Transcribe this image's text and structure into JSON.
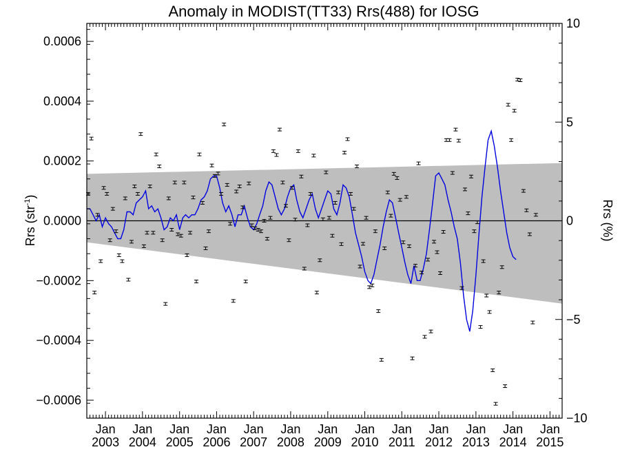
{
  "chart_data": {
    "type": "scatter",
    "title": "Anomaly in MODIST(TT33) Rrs(488) for IOSG",
    "ylabel": "Rrs (str",
    "ylabel_sup": "-1",
    "ylabel_close": ")",
    "y2label": "Rrs (%)",
    "ylim": [
      -0.00066,
      0.00066
    ],
    "y2lim": [
      -10,
      10
    ],
    "xlim": [
      "2002-07-01",
      "2015-05-01"
    ],
    "yticks": [
      {
        "value": 0.0006,
        "label": "0.0006"
      },
      {
        "value": 0.0004,
        "label": "0.0004"
      },
      {
        "value": 0.0002,
        "label": "0.0002"
      },
      {
        "value": 0.0,
        "label": "0.0000"
      },
      {
        "value": -0.0002,
        "label": "−0.0002"
      },
      {
        "value": -0.0004,
        "label": "−0.0004"
      },
      {
        "value": -0.0006,
        "label": "−0.0006"
      }
    ],
    "y2ticks": [
      {
        "value": 10,
        "label": "10"
      },
      {
        "value": 5,
        "label": "5"
      },
      {
        "value": 0,
        "label": "0"
      },
      {
        "value": -5,
        "label": "−5"
      },
      {
        "value": -10,
        "label": "−10"
      }
    ],
    "xticks": [
      {
        "date": "2003-01-01",
        "month": "Jan",
        "year": "2003"
      },
      {
        "date": "2004-01-01",
        "month": "Jan",
        "year": "2004"
      },
      {
        "date": "2005-01-01",
        "month": "Jan",
        "year": "2005"
      },
      {
        "date": "2006-01-01",
        "month": "Jan",
        "year": "2006"
      },
      {
        "date": "2007-01-01",
        "month": "Jan",
        "year": "2007"
      },
      {
        "date": "2008-01-01",
        "month": "Jan",
        "year": "2008"
      },
      {
        "date": "2009-01-01",
        "month": "Jan",
        "year": "2009"
      },
      {
        "date": "2010-01-01",
        "month": "Jan",
        "year": "2010"
      },
      {
        "date": "2011-01-01",
        "month": "Jan",
        "year": "2011"
      },
      {
        "date": "2012-01-01",
        "month": "Jan",
        "year": "2012"
      },
      {
        "date": "2013-01-01",
        "month": "Jan",
        "year": "2013"
      },
      {
        "date": "2014-01-01",
        "month": "Jan",
        "year": "2014"
      },
      {
        "date": "2015-01-01",
        "month": "Jan",
        "year": "2015"
      }
    ],
    "zero_line": 0.0,
    "band": {
      "upper": [
        [
          "2002-07-01",
          0.000157
        ],
        [
          "2015-05-01",
          0.000193
        ]
      ],
      "lower": [
        [
          "2002-07-01",
          -7.2e-05
        ],
        [
          "2015-05-01",
          -0.000277
        ]
      ],
      "color": "#bebebe"
    },
    "points": [
      [
        "2002-07-15",
        9e-05
      ],
      [
        "2002-08-15",
        0.000275
      ],
      [
        "2002-09-15",
        -0.00024
      ],
      [
        "2002-10-15",
        2e-05
      ],
      [
        "2002-11-15",
        -0.000135
      ],
      [
        "2002-12-15",
        0.00011
      ],
      [
        "2003-01-15",
        9e-05
      ],
      [
        "2003-02-15",
        -6.5e-05
      ],
      [
        "2003-03-15",
        4e-05
      ],
      [
        "2003-04-15",
        -3.5e-05
      ],
      [
        "2003-05-15",
        -0.000115
      ],
      [
        "2003-06-15",
        -0.000135
      ],
      [
        "2003-07-15",
        7.5e-05
      ],
      [
        "2003-08-15",
        -0.000197
      ],
      [
        "2003-09-15",
        -7e-05
      ],
      [
        "2003-10-15",
        0.000115
      ],
      [
        "2003-11-15",
        9e-05
      ],
      [
        "2003-12-15",
        0.00029
      ],
      [
        "2004-01-15",
        -8.5e-05
      ],
      [
        "2004-02-15",
        -4e-05
      ],
      [
        "2004-03-15",
        0.000115
      ],
      [
        "2004-04-15",
        -4e-05
      ],
      [
        "2004-05-15",
        0.000222
      ],
      [
        "2004-06-15",
        0.000182
      ],
      [
        "2004-07-15",
        -6.5e-05
      ],
      [
        "2004-08-15",
        -0.000278
      ],
      [
        "2004-09-15",
        7.5e-05
      ],
      [
        "2004-10-15",
        -3e-05
      ],
      [
        "2004-11-15",
        0.000128
      ],
      [
        "2004-12-15",
        -4.5e-05
      ],
      [
        "2005-01-15",
        -5e-05
      ],
      [
        "2005-02-15",
        0.000128
      ],
      [
        "2005-03-15",
        -0.000115
      ],
      [
        "2005-04-15",
        -4e-05
      ],
      [
        "2005-05-15",
        7.8e-05
      ],
      [
        "2005-06-15",
        -0.000203
      ],
      [
        "2005-07-15",
        0.000222
      ],
      [
        "2005-08-15",
        6e-05
      ],
      [
        "2005-09-15",
        -9.2e-05
      ],
      [
        "2005-10-15",
        -3.5e-05
      ],
      [
        "2005-11-15",
        0.000185
      ],
      [
        "2005-12-15",
        0.00015
      ],
      [
        "2006-01-15",
        0.000158
      ],
      [
        "2006-02-15",
        9e-05
      ],
      [
        "2006-03-15",
        0.000322
      ],
      [
        "2006-04-15",
        0.00012
      ],
      [
        "2006-05-15",
        -1e-05
      ],
      [
        "2006-06-15",
        -0.000268
      ],
      [
        "2006-07-15",
        9.8e-05
      ],
      [
        "2006-08-15",
        0.000115
      ],
      [
        "2006-09-15",
        4.5e-05
      ],
      [
        "2006-10-15",
        -0.000203
      ],
      [
        "2006-11-15",
        0.000125
      ],
      [
        "2006-12-15",
        -1.5e-05
      ],
      [
        "2007-01-15",
        -2.5e-05
      ],
      [
        "2007-02-15",
        -3e-05
      ],
      [
        "2007-03-15",
        -3.5e-05
      ],
      [
        "2007-04-15",
        0.0
      ],
      [
        "2007-05-15",
        -6e-05
      ],
      [
        "2007-06-15",
        1e-05
      ],
      [
        "2007-07-15",
        0.000233
      ],
      [
        "2007-08-15",
        0.00022
      ],
      [
        "2007-09-15",
        0.000305
      ],
      [
        "2007-10-15",
        0.000128
      ],
      [
        "2007-11-15",
        5e-05
      ],
      [
        "2007-12-15",
        -6.5e-05
      ],
      [
        "2008-01-15",
        0.00011
      ],
      [
        "2008-02-15",
        4e-06
      ],
      [
        "2008-03-15",
        0.000233
      ],
      [
        "2008-04-15",
        0.000148
      ],
      [
        "2008-05-15",
        -0.00016
      ],
      [
        "2008-06-15",
        -1.5e-05
      ],
      [
        "2008-07-15",
        9e-05
      ],
      [
        "2008-08-15",
        0.000218
      ],
      [
        "2008-09-15",
        -0.00024
      ],
      [
        "2008-10-15",
        -0.000132
      ],
      [
        "2008-11-15",
        5e-06
      ],
      [
        "2008-12-15",
        0.000162
      ],
      [
        "2009-01-15",
        1e-05
      ],
      [
        "2009-02-15",
        -5e-05
      ],
      [
        "2009-03-15",
        6e-05
      ],
      [
        "2009-04-15",
        9.5e-05
      ],
      [
        "2009-05-15",
        -7.8e-05
      ],
      [
        "2009-06-15",
        0.000228
      ],
      [
        "2009-07-15",
        0.000273
      ],
      [
        "2009-08-15",
        9e-05
      ],
      [
        "2009-09-15",
        4e-05
      ],
      [
        "2009-10-15",
        0.000182
      ],
      [
        "2009-11-15",
        -0.000153
      ],
      [
        "2009-12-15",
        -7.7e-05
      ],
      [
        "2010-01-15",
        1e-05
      ],
      [
        "2010-02-15",
        -0.000222
      ],
      [
        "2010-03-15",
        -0.000216
      ],
      [
        "2010-04-15",
        -3.5e-05
      ],
      [
        "2010-05-15",
        -0.000302
      ],
      [
        "2010-06-15",
        -0.000465
      ],
      [
        "2010-07-15",
        -9.2e-05
      ],
      [
        "2010-08-15",
        9.5e-05
      ],
      [
        "2010-09-15",
        1.7e-05
      ],
      [
        "2010-10-15",
        0.000157
      ],
      [
        "2010-11-15",
        0.000143
      ],
      [
        "2010-12-15",
        7e-05
      ],
      [
        "2011-01-15",
        -7.2e-05
      ],
      [
        "2011-02-15",
        8e-05
      ],
      [
        "2011-03-15",
        -8.5e-05
      ],
      [
        "2011-04-15",
        -0.00046
      ],
      [
        "2011-05-15",
        -0.00015
      ],
      [
        "2011-06-15",
        0.000192
      ],
      [
        "2011-07-15",
        -0.000173
      ],
      [
        "2011-08-15",
        -0.000388
      ],
      [
        "2011-09-15",
        -0.00013
      ],
      [
        "2011-10-15",
        -0.00037
      ],
      [
        "2011-11-15",
        -7e-05
      ],
      [
        "2011-12-15",
        -0.000105
      ],
      [
        "2012-01-15",
        -0.000175
      ],
      [
        "2012-02-15",
        -3.7e-05
      ],
      [
        "2012-03-15",
        0.00027
      ],
      [
        "2012-04-15",
        0.00027
      ],
      [
        "2012-05-15",
        0.00016
      ],
      [
        "2012-06-15",
        0.000305
      ],
      [
        "2012-07-15",
        0.000268
      ],
      [
        "2012-08-15",
        -0.000225
      ],
      [
        "2012-09-15",
        0.000105
      ],
      [
        "2012-10-15",
        2.5e-05
      ],
      [
        "2012-11-15",
        0.000148
      ],
      [
        "2012-12-15",
        -3.5e-05
      ],
      [
        "2013-01-15",
        -5e-06
      ],
      [
        "2013-02-15",
        -0.000355
      ],
      [
        "2013-03-15",
        -0.000135
      ],
      [
        "2013-04-15",
        -0.00025
      ],
      [
        "2013-05-15",
        -0.000305
      ],
      [
        "2013-06-15",
        -0.0005
      ],
      [
        "2013-07-15",
        -0.000612
      ],
      [
        "2013-08-15",
        -0.00024
      ],
      [
        "2013-09-15",
        -0.000155
      ],
      [
        "2013-10-15",
        -0.000553
      ],
      [
        "2013-11-15",
        0.000388
      ],
      [
        "2013-12-15",
        0.00027
      ],
      [
        "2014-01-15",
        0.000368
      ],
      [
        "2014-02-15",
        0.000472
      ],
      [
        "2014-03-15",
        0.00047
      ],
      [
        "2014-04-15",
        0.0001
      ],
      [
        "2014-05-15",
        3.5e-05
      ],
      [
        "2014-06-15",
        -4.5e-05
      ],
      [
        "2014-07-15",
        -0.00034
      ],
      [
        "2014-08-15",
        2e-05
      ]
    ],
    "smoothed_line": {
      "color": "#0000e0",
      "values": [
        [
          "2002-07-01",
          4e-05
        ],
        [
          "2002-08-01",
          4e-05
        ],
        [
          "2002-09-01",
          2e-05
        ],
        [
          "2002-10-01",
          0.0
        ],
        [
          "2002-11-01",
          2e-05
        ],
        [
          "2002-12-01",
          -2e-05
        ],
        [
          "2003-01-01",
          1e-05
        ],
        [
          "2003-02-01",
          -1e-05
        ],
        [
          "2003-03-01",
          -2e-05
        ],
        [
          "2003-04-01",
          -4e-05
        ],
        [
          "2003-05-01",
          -6e-05
        ],
        [
          "2003-06-01",
          -6e-05
        ],
        [
          "2003-07-01",
          -3e-05
        ],
        [
          "2003-08-01",
          3e-05
        ],
        [
          "2003-09-01",
          3e-05
        ],
        [
          "2003-10-01",
          2e-05
        ],
        [
          "2003-11-01",
          6e-05
        ],
        [
          "2003-12-01",
          7e-05
        ],
        [
          "2004-01-01",
          8e-05
        ],
        [
          "2004-02-01",
          0.0001
        ],
        [
          "2004-03-01",
          4e-05
        ],
        [
          "2004-04-01",
          5e-05
        ],
        [
          "2004-05-01",
          3e-05
        ],
        [
          "2004-06-01",
          4e-05
        ],
        [
          "2004-07-01",
          1e-05
        ],
        [
          "2004-08-01",
          -3e-05
        ],
        [
          "2004-09-01",
          -2e-05
        ],
        [
          "2004-10-01",
          1e-05
        ],
        [
          "2004-11-01",
          0.0
        ],
        [
          "2004-12-01",
          2e-05
        ],
        [
          "2005-01-01",
          -3e-05
        ],
        [
          "2005-02-01",
          1e-05
        ],
        [
          "2005-03-01",
          2e-05
        ],
        [
          "2005-04-01",
          1e-05
        ],
        [
          "2005-05-01",
          2e-05
        ],
        [
          "2005-06-01",
          2e-05
        ],
        [
          "2005-07-01",
          4e-05
        ],
        [
          "2005-08-01",
          7e-05
        ],
        [
          "2005-09-01",
          8e-05
        ],
        [
          "2005-10-01",
          0.0001
        ],
        [
          "2005-11-01",
          0.00014
        ],
        [
          "2005-12-01",
          0.00015
        ],
        [
          "2006-01-01",
          0.00015
        ],
        [
          "2006-02-01",
          0.00011
        ],
        [
          "2006-03-01",
          6e-05
        ],
        [
          "2006-04-01",
          3e-05
        ],
        [
          "2006-05-01",
          5e-05
        ],
        [
          "2006-06-01",
          2e-05
        ],
        [
          "2006-07-01",
          -2e-05
        ],
        [
          "2006-08-01",
          2e-05
        ],
        [
          "2006-09-01",
          2e-05
        ],
        [
          "2006-10-01",
          5e-05
        ],
        [
          "2006-11-01",
          1e-05
        ],
        [
          "2006-12-01",
          -2e-05
        ],
        [
          "2007-01-01",
          -3e-05
        ],
        [
          "2007-02-01",
          -1e-05
        ],
        [
          "2007-03-01",
          2e-05
        ],
        [
          "2007-04-01",
          5e-05
        ],
        [
          "2007-05-01",
          0.0001
        ],
        [
          "2007-06-01",
          0.00013
        ],
        [
          "2007-07-01",
          0.00012
        ],
        [
          "2007-08-01",
          8e-05
        ],
        [
          "2007-09-01",
          4e-05
        ],
        [
          "2007-10-01",
          2e-05
        ],
        [
          "2007-11-01",
          4e-05
        ],
        [
          "2007-12-01",
          8e-05
        ],
        [
          "2008-01-01",
          0.00011
        ],
        [
          "2008-02-01",
          0.00012
        ],
        [
          "2008-03-01",
          7e-05
        ],
        [
          "2008-04-01",
          3e-05
        ],
        [
          "2008-05-01",
          1e-05
        ],
        [
          "2008-06-01",
          4e-05
        ],
        [
          "2008-07-01",
          7e-05
        ],
        [
          "2008-08-01",
          9e-05
        ],
        [
          "2008-09-01",
          4e-05
        ],
        [
          "2008-10-01",
          1e-05
        ],
        [
          "2008-11-01",
          4e-05
        ],
        [
          "2008-12-01",
          7e-05
        ],
        [
          "2009-01-01",
          0.0001
        ],
        [
          "2009-02-01",
          9e-05
        ],
        [
          "2009-03-01",
          4e-05
        ],
        [
          "2009-04-01",
          2e-05
        ],
        [
          "2009-05-01",
          6e-05
        ],
        [
          "2009-06-01",
          0.00012
        ],
        [
          "2009-07-01",
          0.00011
        ],
        [
          "2009-08-01",
          8e-05
        ],
        [
          "2009-09-01",
          2e-05
        ],
        [
          "2009-10-01",
          -4e-05
        ],
        [
          "2009-11-01",
          -8e-05
        ],
        [
          "2009-12-01",
          -0.00012
        ],
        [
          "2010-01-01",
          -0.00017
        ],
        [
          "2010-02-01",
          -0.0002
        ],
        [
          "2010-03-01",
          -0.00021
        ],
        [
          "2010-04-01",
          -0.00018
        ],
        [
          "2010-05-01",
          -0.00013
        ],
        [
          "2010-06-01",
          -8e-05
        ],
        [
          "2010-07-01",
          -2e-05
        ],
        [
          "2010-08-01",
          3e-05
        ],
        [
          "2010-09-01",
          7e-05
        ],
        [
          "2010-10-01",
          6e-05
        ],
        [
          "2010-11-01",
          1e-05
        ],
        [
          "2010-12-01",
          -4e-05
        ],
        [
          "2011-01-01",
          -9e-05
        ],
        [
          "2011-02-01",
          -0.00014
        ],
        [
          "2011-03-01",
          -0.00018
        ],
        [
          "2011-04-01",
          -0.00021
        ],
        [
          "2011-05-01",
          -0.00015
        ],
        [
          "2011-06-01",
          -0.0002
        ],
        [
          "2011-07-01",
          -0.0002
        ],
        [
          "2011-08-01",
          -0.00016
        ],
        [
          "2011-09-01",
          -0.00011
        ],
        [
          "2011-10-01",
          -3e-05
        ],
        [
          "2011-11-01",
          6e-05
        ],
        [
          "2011-12-01",
          0.00015
        ],
        [
          "2012-01-01",
          0.00016
        ],
        [
          "2012-02-01",
          0.00014
        ],
        [
          "2012-03-01",
          0.00012
        ],
        [
          "2012-04-01",
          7e-05
        ],
        [
          "2012-05-01",
          3e-05
        ],
        [
          "2012-06-01",
          -2e-05
        ],
        [
          "2012-07-01",
          -6e-05
        ],
        [
          "2012-08-01",
          -0.00014
        ],
        [
          "2012-09-01",
          -0.00025
        ],
        [
          "2012-10-01",
          -0.00033
        ],
        [
          "2012-11-01",
          -0.00037
        ],
        [
          "2012-12-01",
          -0.0003
        ],
        [
          "2013-01-01",
          -0.00018
        ],
        [
          "2013-02-01",
          -4e-05
        ],
        [
          "2013-03-01",
          8e-05
        ],
        [
          "2013-04-01",
          0.00018
        ],
        [
          "2013-05-01",
          0.00027
        ],
        [
          "2013-06-01",
          0.0003
        ],
        [
          "2013-07-01",
          0.00025
        ],
        [
          "2013-08-01",
          0.00018
        ],
        [
          "2013-09-01",
          0.0001
        ],
        [
          "2013-10-01",
          3e-05
        ],
        [
          "2013-11-01",
          -4e-05
        ],
        [
          "2013-12-01",
          -9e-05
        ],
        [
          "2014-01-01",
          -0.00012
        ],
        [
          "2014-02-01",
          -0.00013
        ]
      ]
    }
  }
}
